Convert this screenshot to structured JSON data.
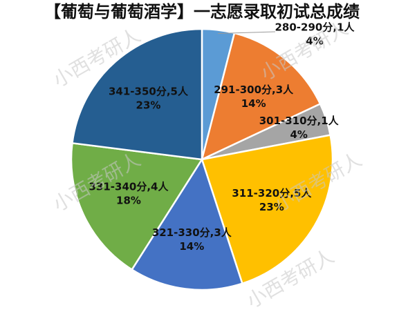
{
  "chart_data": {
    "type": "pie",
    "title": "【葡萄与葡萄酒学】一志愿录取初试总成绩",
    "categories": [
      "280-290分,1人",
      "291-300分,3人",
      "301-310分,1人",
      "311-320分,5人",
      "321-330分,3人",
      "331-340分,4人",
      "341-350分,5人"
    ],
    "values": [
      4,
      14,
      4,
      23,
      14,
      18,
      23
    ],
    "value_labels": [
      "4%",
      "14%",
      "4%",
      "23%",
      "14%",
      "18%",
      "23%"
    ],
    "colors": [
      "#5b9bd5",
      "#ed7d31",
      "#a5a5a5",
      "#ffc000",
      "#4472c4",
      "#70ad47",
      "#255e91"
    ],
    "watermark": "小西考研人"
  }
}
